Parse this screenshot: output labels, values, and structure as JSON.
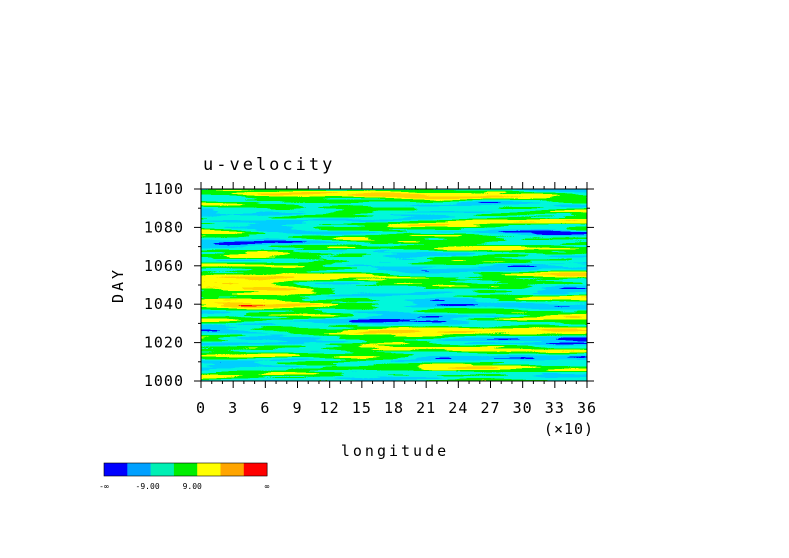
{
  "chart_data": {
    "type": "heatmap",
    "title": "u-velocity",
    "xlabel": "longitude",
    "ylabel": "DAY",
    "x_multiplier_label": "(×10)",
    "xlim": [
      0,
      36
    ],
    "ylim": [
      1000,
      1100
    ],
    "x_ticks": [
      "0",
      "3",
      "6",
      "9",
      "12",
      "15",
      "18",
      "21",
      "24",
      "27",
      "30",
      "33",
      "36"
    ],
    "y_ticks": [
      "1000",
      "1020",
      "1040",
      "1060",
      "1080",
      "1100"
    ],
    "legend": {
      "colors": [
        "#0000ff",
        "#00a0ff",
        "#00f0b4",
        "#00ee00",
        "#ffff00",
        "#ffa500",
        "#ff0000"
      ],
      "labels": [
        "-∞",
        "-9.00",
        "9.00",
        "∞"
      ]
    }
  }
}
